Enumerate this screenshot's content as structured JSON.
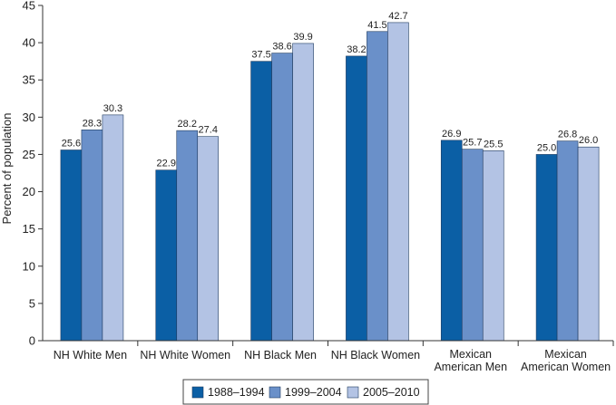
{
  "chart_data": {
    "type": "bar",
    "ylabel": "Percent of population",
    "xlabel": "",
    "title": "",
    "ylim": [
      0,
      45
    ],
    "ytick_step": 5,
    "categories": [
      [
        "NH White Men"
      ],
      [
        "NH White Women"
      ],
      [
        "NH Black Men"
      ],
      [
        "NH Black Women"
      ],
      [
        "Mexican",
        "American Men"
      ],
      [
        "Mexican",
        "American Women"
      ]
    ],
    "series": [
      {
        "name": "1988–1994",
        "color": "#0b5fa5",
        "values": [
          25.6,
          22.9,
          37.5,
          38.2,
          26.9,
          25.0
        ],
        "labels": [
          "25.6",
          "22.9",
          "37.5",
          "38.2",
          "26.9",
          "25.0"
        ]
      },
      {
        "name": "1999–2004",
        "color": "#6a90c9",
        "values": [
          28.3,
          28.2,
          38.6,
          41.5,
          25.7,
          26.8
        ],
        "labels": [
          "28.3",
          "28.2",
          "38.6",
          "41.5",
          "25.7",
          "26.8"
        ]
      },
      {
        "name": "2005–2010",
        "color": "#b3c3e4",
        "values": [
          30.3,
          27.4,
          39.9,
          42.7,
          25.5,
          26.0
        ],
        "labels": [
          "30.3",
          "27.4",
          "39.9",
          "42.7",
          "25.5",
          "26.0"
        ]
      }
    ],
    "legend_position": "bottom-right"
  }
}
